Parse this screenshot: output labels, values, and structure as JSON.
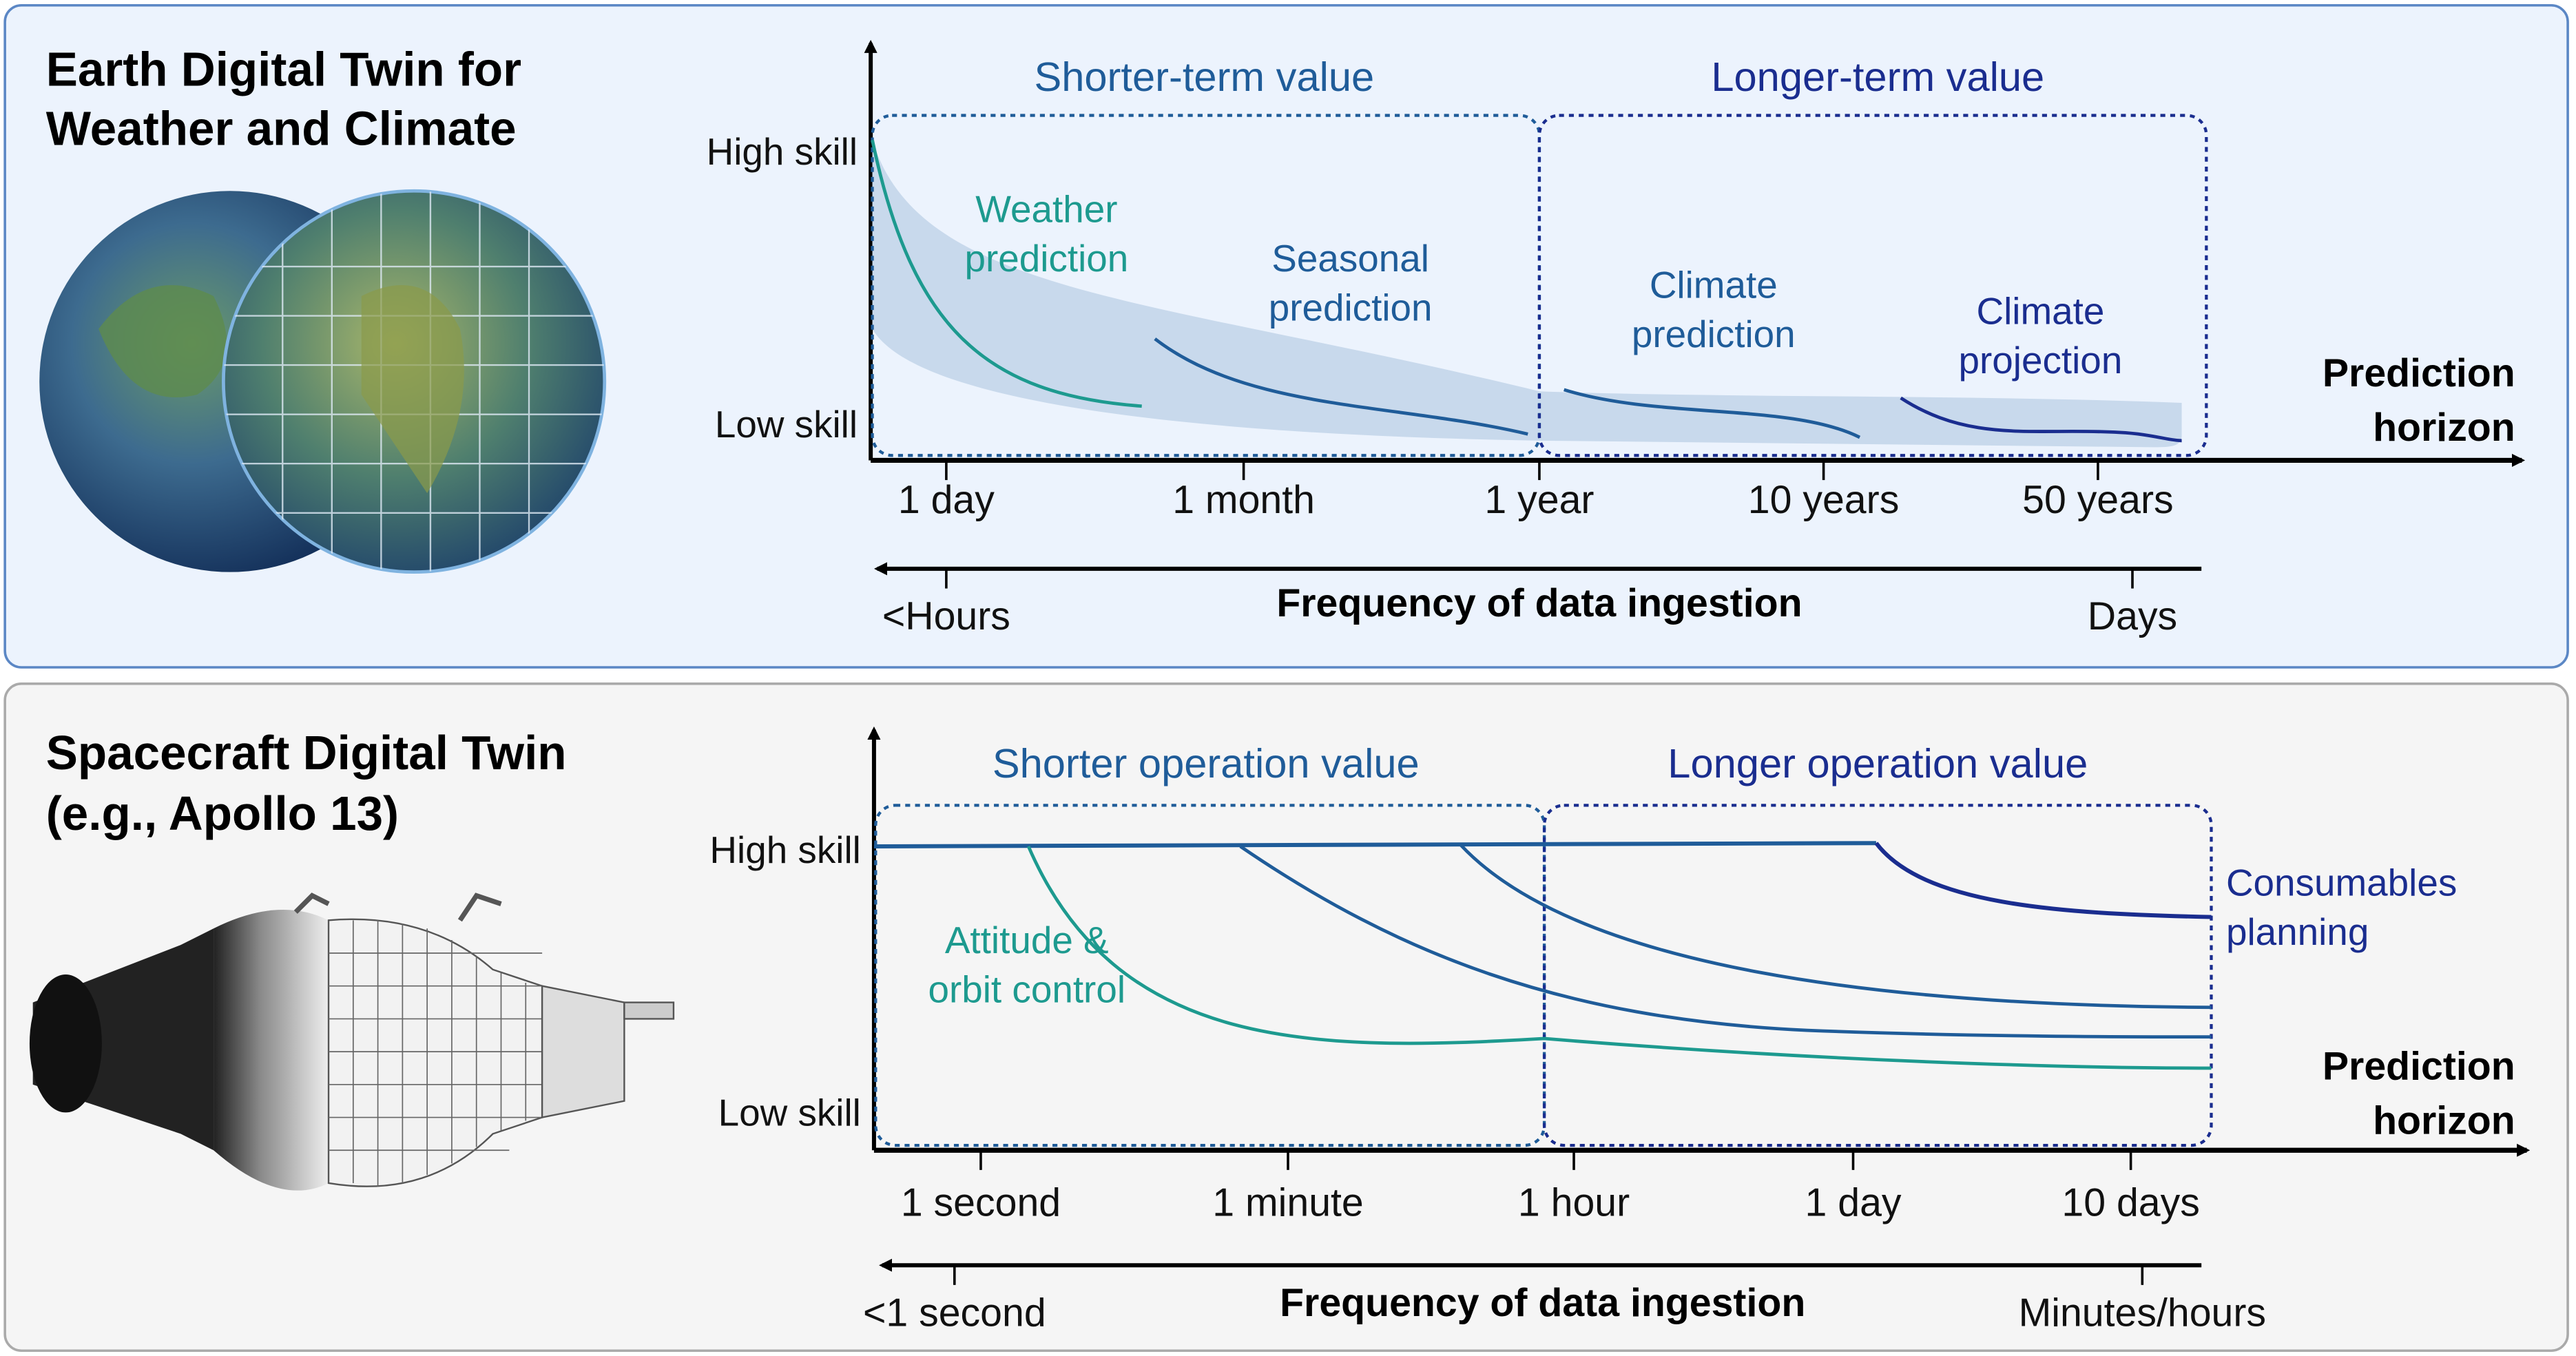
{
  "colors": {
    "teal": "#1d9a8f",
    "blue": "#1f5c99",
    "navy": "#1a2d8f",
    "band": "#c8d9ec",
    "top_bg": "#ecf3fd",
    "bottom_bg": "#f5f5f5"
  },
  "earth": {
    "title_line1": "Earth Digital Twin for",
    "title_line2": "Weather and Climate",
    "y_high": "High skill",
    "y_low": "Low skill",
    "header_short": "Shorter-term value",
    "header_long": "Longer-term value",
    "x_ticks": [
      "1 day",
      "1 month",
      "1 year",
      "10 years",
      "50 years"
    ],
    "curves": [
      {
        "line1": "Weather",
        "line2": "prediction"
      },
      {
        "line1": "Seasonal",
        "line2": "prediction"
      },
      {
        "line1": "Climate",
        "line2": "prediction"
      },
      {
        "line1": "Climate",
        "line2": "projection"
      }
    ],
    "x_title_line1": "Prediction",
    "x_title_line2": "horizon",
    "freq_left": "<Hours",
    "freq_title": "Frequency of data ingestion",
    "freq_right": "Days"
  },
  "spacecraft": {
    "title_line1": "Spacecraft Digital Twin",
    "title_line2": "(e.g., Apollo 13)",
    "y_high": "High skill",
    "y_low": "Low skill",
    "header_short": "Shorter operation value",
    "header_long": "Longer operation value",
    "x_ticks": [
      "1 second",
      "1 minute",
      "1 hour",
      "1 day",
      "10 days"
    ],
    "label_attitude_1": "Attitude &",
    "label_attitude_2": "orbit control",
    "label_consumables_1": "Consumables",
    "label_consumables_2": "planning",
    "x_title_line1": "Prediction",
    "x_title_line2": "horizon",
    "freq_left": "<1 second",
    "freq_title": "Frequency of data ingestion",
    "freq_right": "Minutes/hours"
  }
}
